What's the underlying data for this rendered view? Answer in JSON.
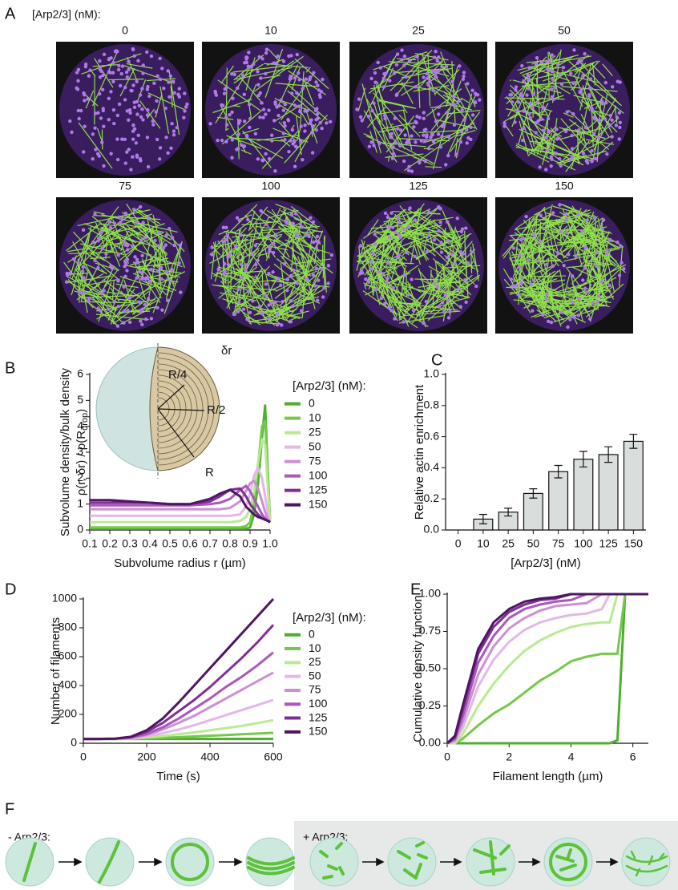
{
  "panel_labels": [
    "A",
    "B",
    "C",
    "D",
    "E",
    "F"
  ],
  "panel_a": {
    "legend_title": "[Arp2/3] (nM):",
    "titles": [
      "0",
      "10",
      "25",
      "50",
      "75",
      "100",
      "125",
      "150"
    ]
  },
  "panel_f": {
    "left_label": "- Arp2/3:",
    "right_label": "+ Arp2/3:"
  },
  "chart_data": [
    {
      "type": "line",
      "ylabel": "Subvolume density/bulk density",
      "ylabel2": "ρ(r, δr) / ρ(R",
      "ylabel2_sub": "drop",
      "ylabel2_end": ")",
      "xlabel": "Subvolume radius r (µm)",
      "legend_title": "[Arp2/3] (nM):",
      "inset_labels": [
        "R/4",
        "R/2",
        "R",
        "δr"
      ],
      "xlim": [
        0.1,
        1.0
      ],
      "ylim": [
        0,
        6
      ],
      "xticks": [
        0.1,
        0.2,
        0.3,
        0.4,
        0.5,
        0.6,
        0.7,
        0.8,
        0.9,
        {
          "value": 1.0,
          "label": "1.0"
        }
      ],
      "yticks": [
        0,
        1,
        2,
        3,
        4,
        5,
        6
      ],
      "x": [
        0.1,
        0.15,
        0.2,
        0.3,
        0.4,
        0.5,
        0.6,
        0.7,
        0.75,
        0.8,
        0.85,
        0.88,
        0.9,
        0.92,
        0.94,
        0.96,
        0.975,
        0.99,
        1.0
      ],
      "series": [
        {
          "name": "0",
          "color": "#4daf2c",
          "values": [
            0.05,
            0.05,
            0.05,
            0.05,
            0.05,
            0.05,
            0.05,
            0.05,
            0.05,
            0.05,
            0.05,
            0.05,
            0.1,
            0.6,
            1.8,
            3.6,
            4.8,
            2.0,
            0.3
          ]
        },
        {
          "name": "10",
          "color": "#74c84a",
          "values": [
            0.1,
            0.1,
            0.1,
            0.1,
            0.1,
            0.1,
            0.1,
            0.1,
            0.1,
            0.1,
            0.1,
            0.15,
            0.3,
            1.0,
            2.5,
            4.0,
            4.2,
            2.0,
            0.3
          ]
        },
        {
          "name": "25",
          "color": "#b8ea8f",
          "values": [
            0.3,
            0.3,
            0.3,
            0.3,
            0.3,
            0.3,
            0.3,
            0.3,
            0.3,
            0.3,
            0.35,
            0.5,
            0.8,
            1.5,
            2.6,
            3.5,
            3.3,
            1.5,
            0.3
          ]
        },
        {
          "name": "50",
          "color": "#e3b8e6",
          "values": [
            0.55,
            0.55,
            0.55,
            0.55,
            0.55,
            0.55,
            0.55,
            0.55,
            0.55,
            0.55,
            0.6,
            0.9,
            1.4,
            2.1,
            2.4,
            2.0,
            1.3,
            0.6,
            0.3
          ]
        },
        {
          "name": "75",
          "color": "#cc8fd3",
          "values": [
            0.8,
            0.8,
            0.8,
            0.8,
            0.8,
            0.8,
            0.8,
            0.8,
            0.8,
            0.85,
            1.1,
            1.5,
            1.8,
            1.9,
            1.6,
            1.1,
            0.7,
            0.4,
            0.3
          ]
        },
        {
          "name": "100",
          "color": "#a958bb",
          "values": [
            0.95,
            0.95,
            0.95,
            0.95,
            0.95,
            0.95,
            0.95,
            1.0,
            1.05,
            1.2,
            1.55,
            1.7,
            1.5,
            1.2,
            0.9,
            0.6,
            0.45,
            0.35,
            0.3
          ]
        },
        {
          "name": "125",
          "color": "#812d98",
          "values": [
            1.05,
            1.05,
            1.05,
            1.05,
            1.05,
            1.0,
            1.0,
            1.1,
            1.3,
            1.55,
            1.6,
            1.3,
            1.0,
            0.8,
            0.6,
            0.45,
            0.4,
            0.35,
            0.3
          ]
        },
        {
          "name": "150",
          "color": "#4e1660",
          "values": [
            1.15,
            1.15,
            1.15,
            1.1,
            1.05,
            1.0,
            1.0,
            1.2,
            1.4,
            1.55,
            1.3,
            0.9,
            0.75,
            0.6,
            0.5,
            0.45,
            0.4,
            0.35,
            0.3
          ]
        }
      ]
    },
    {
      "type": "bar",
      "ylabel": "Relative actin enrichment",
      "xlabel": "[Arp2/3] (nM)",
      "categories": [
        "0",
        "10",
        "25",
        "50",
        "75",
        "100",
        "125",
        "150"
      ],
      "values": [
        0,
        0.07,
        0.115,
        0.235,
        0.375,
        0.455,
        0.485,
        0.57
      ],
      "errors": [
        0,
        0.03,
        0.025,
        0.03,
        0.04,
        0.05,
        0.05,
        0.045
      ],
      "color": "#d9dedc",
      "ylim": [
        0,
        1.0
      ],
      "yticks": [
        {
          "value": 0,
          "label": "0.0"
        },
        0.2,
        0.4,
        0.6,
        0.8,
        {
          "value": 1.0,
          "label": "1.0"
        }
      ]
    },
    {
      "type": "line",
      "ylabel": "Number of filaments",
      "xlabel": "Time (s)",
      "legend_title": "[Arp2/3] (nM):",
      "xlim": [
        0,
        600
      ],
      "ylim": [
        0,
        1000
      ],
      "xticks": [
        0,
        200,
        400,
        600
      ],
      "yticks": [
        0,
        200,
        400,
        600,
        800,
        1000
      ],
      "x": [
        0,
        50,
        100,
        150,
        200,
        250,
        300,
        350,
        400,
        450,
        500,
        550,
        600
      ],
      "series": [
        {
          "name": "0",
          "color": "#4daf2c",
          "values": [
            30,
            30,
            30,
            30,
            30,
            30,
            30,
            30,
            30,
            30,
            30,
            30,
            30
          ]
        },
        {
          "name": "10",
          "color": "#74c84a",
          "values": [
            30,
            30,
            30,
            31,
            34,
            38,
            42,
            47,
            52,
            57,
            62,
            67,
            72
          ]
        },
        {
          "name": "25",
          "color": "#b8ea8f",
          "values": [
            30,
            30,
            30,
            33,
            40,
            50,
            62,
            75,
            90,
            105,
            120,
            140,
            160
          ]
        },
        {
          "name": "50",
          "color": "#e3b8e6",
          "values": [
            30,
            30,
            30,
            35,
            48,
            70,
            95,
            125,
            160,
            195,
            230,
            265,
            300
          ]
        },
        {
          "name": "75",
          "color": "#cc8fd3",
          "values": [
            30,
            30,
            31,
            38,
            58,
            95,
            140,
            190,
            250,
            310,
            370,
            430,
            490
          ]
        },
        {
          "name": "100",
          "color": "#a958bb",
          "values": [
            30,
            30,
            31,
            40,
            65,
            110,
            170,
            240,
            310,
            390,
            460,
            540,
            630
          ]
        },
        {
          "name": "125",
          "color": "#812d98",
          "values": [
            30,
            30,
            32,
            42,
            80,
            140,
            220,
            300,
            390,
            490,
            590,
            700,
            820
          ]
        },
        {
          "name": "150",
          "color": "#4e1660",
          "values": [
            30,
            30,
            32,
            45,
            90,
            170,
            280,
            400,
            520,
            640,
            760,
            880,
            1000
          ]
        }
      ]
    },
    {
      "type": "line",
      "ylabel": "Cumulative density function",
      "xlabel": "Filament length (µm)",
      "xlim": [
        0,
        6.5
      ],
      "ylim": [
        0,
        1.0
      ],
      "xticks": [
        0,
        2,
        4,
        6
      ],
      "yticks": [
        {
          "value": 0,
          "label": "0.00"
        },
        0.25,
        {
          "value": 0.5,
          "label": "0.50"
        },
        0.75,
        {
          "value": 1.0,
          "label": "1.00"
        }
      ],
      "x": [
        0,
        0.25,
        0.5,
        1,
        1.5,
        2,
        2.5,
        3,
        3.5,
        4,
        4.5,
        5,
        5.25,
        5.5,
        5.75,
        6,
        6.5
      ],
      "series": [
        {
          "name": "0",
          "color": "#4daf2c",
          "values": [
            0,
            0,
            0,
            0,
            0,
            0,
            0,
            0,
            0,
            0,
            0,
            0,
            0,
            0.02,
            1,
            1,
            1
          ]
        },
        {
          "name": "10",
          "color": "#74c84a",
          "values": [
            0,
            0,
            0.03,
            0.12,
            0.2,
            0.26,
            0.34,
            0.42,
            0.48,
            0.55,
            0.58,
            0.6,
            0.6,
            0.6,
            1,
            1,
            1
          ]
        },
        {
          "name": "25",
          "color": "#b8ea8f",
          "values": [
            0,
            0,
            0.06,
            0.25,
            0.4,
            0.52,
            0.62,
            0.69,
            0.74,
            0.78,
            0.8,
            0.81,
            0.81,
            1,
            1,
            1,
            1
          ]
        },
        {
          "name": "50",
          "color": "#e3b8e6",
          "values": [
            0,
            0.01,
            0.1,
            0.38,
            0.56,
            0.68,
            0.76,
            0.81,
            0.84,
            0.86,
            0.87,
            0.9,
            1,
            1,
            1,
            1,
            1
          ]
        },
        {
          "name": "75",
          "color": "#cc8fd3",
          "values": [
            0,
            0.02,
            0.14,
            0.46,
            0.65,
            0.77,
            0.84,
            0.89,
            0.92,
            0.93,
            0.94,
            1,
            1,
            1,
            1,
            1,
            1
          ]
        },
        {
          "name": "100",
          "color": "#a958bb",
          "values": [
            0,
            0.03,
            0.18,
            0.54,
            0.72,
            0.84,
            0.9,
            0.93,
            0.95,
            0.96,
            1,
            1,
            1,
            1,
            1,
            1,
            1
          ]
        },
        {
          "name": "125",
          "color": "#812d98",
          "values": [
            0,
            0.04,
            0.22,
            0.6,
            0.78,
            0.88,
            0.93,
            0.96,
            0.97,
            1,
            1,
            1,
            1,
            1,
            1,
            1,
            1
          ]
        },
        {
          "name": "150",
          "color": "#4e1660",
          "values": [
            0,
            0.05,
            0.25,
            0.63,
            0.81,
            0.9,
            0.95,
            0.97,
            0.98,
            1,
            1,
            1,
            1,
            1,
            1,
            1,
            1
          ]
        }
      ]
    }
  ]
}
